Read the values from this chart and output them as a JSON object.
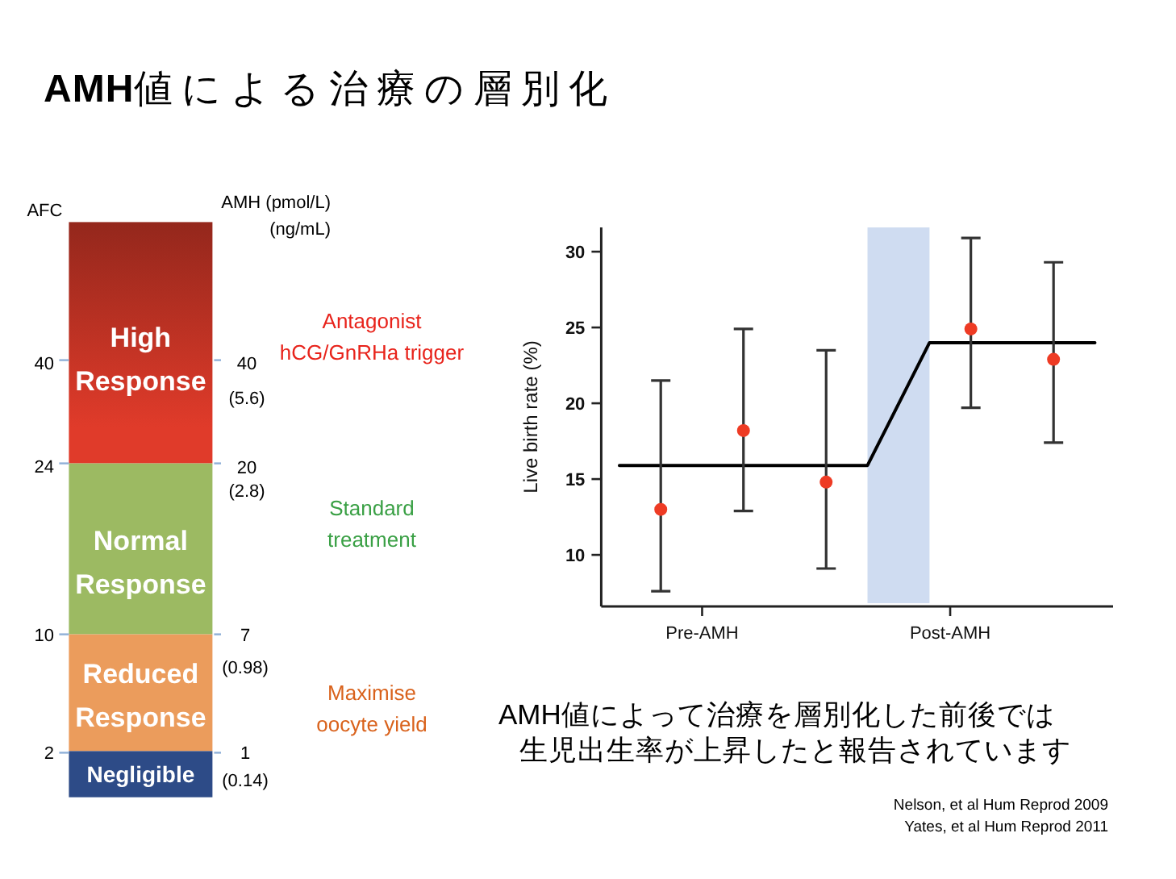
{
  "chart_data": [
    {
      "type": "other",
      "title": "AMH値による治療の層別化",
      "categories": [
        "High\nResponse",
        "Normal\nResponse",
        "Reduced\nResponse",
        "Negligible"
      ],
      "colors": [
        "#e03b2a",
        "#9cba62",
        "#eb9c5c",
        "#2d4b87"
      ],
      "annotations": [
        "AFC",
        "AMH (pmol/L)\n(ng/mL)",
        "40",
        "24",
        "10",
        "2",
        "40\n(5.6)",
        "20\n(2.8)",
        "7\n(0.98)",
        "1\n(0.14)",
        "Antagonist\nhCG/GnRHa trigger",
        "Standard\ntreatment",
        "Maximise\noocyte yield"
      ]
    },
    {
      "type": "scatter",
      "ylabel": "Live birth rate (%)",
      "categories": [
        null,
        null,
        null,
        null,
        "Pre-AMH",
        null,
        null,
        null,
        null,
        null,
        null,
        null,
        null,
        null,
        null,
        null,
        "Post-AMH",
        null,
        null,
        null,
        null,
        null,
        null,
        null
      ],
      "ylim": [
        6.6,
        31.6
      ],
      "yticks": [
        10,
        15,
        20,
        25,
        30
      ],
      "series": [
        {
          "type": "line",
          "color": "#000000",
          "values": [
            15.9,
            15.9,
            15.9,
            15.9,
            15.9,
            15.9,
            15.9,
            15.9,
            15.9,
            15.9,
            15.9,
            15.9,
            15.9,
            18.6,
            21.3,
            24,
            24,
            24,
            24,
            24,
            24,
            24,
            24,
            24
          ]
        },
        {
          "type": "scatter",
          "color": "#ee3b24",
          "marker": "circle",
          "values": [
            null,
            null,
            13,
            null,
            null,
            null,
            18.2,
            null,
            null,
            null,
            14.8,
            null,
            null,
            null,
            null,
            null,
            null,
            24.9,
            null,
            null,
            null,
            22.9,
            null,
            null
          ],
          "errors": [
            null,
            null,
            [
              7.6,
              21.5
            ],
            null,
            null,
            null,
            [
              12.9,
              24.9
            ],
            null,
            null,
            null,
            [
              9.1,
              23.5
            ],
            null,
            null,
            null,
            null,
            null,
            null,
            [
              19.7,
              30.9
            ],
            null,
            null,
            null,
            [
              17.4,
              29.3
            ],
            null,
            null
          ]
        }
      ],
      "annotations": [
        "AMH値によって治療を層別化した前後では",
        "生児出生率が上昇したと報告されています",
        "Nelson, et al Hum Reprod 2009",
        "Yates, et al Hum Reprod 2011"
      ]
    }
  ]
}
